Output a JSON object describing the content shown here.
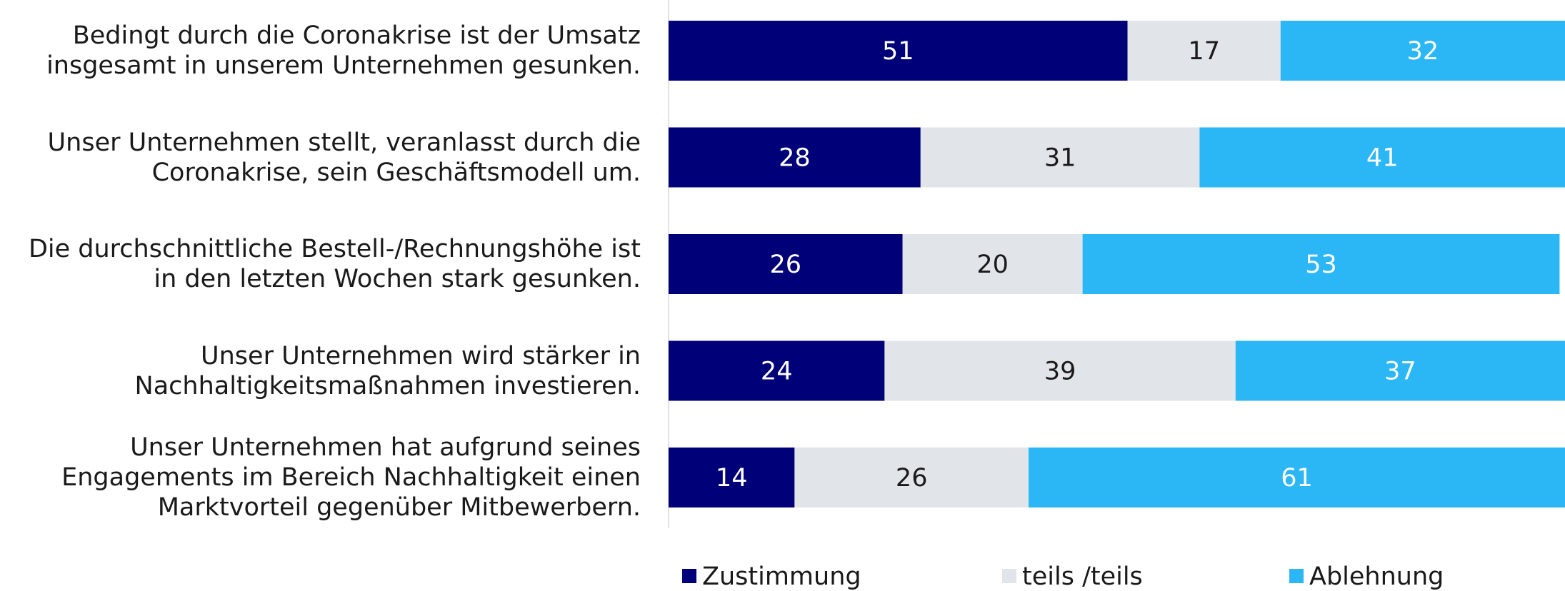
{
  "chart_data": {
    "type": "stacked_bar_horizontal",
    "categories": [
      "Bedingt durch die Coronakrise ist der Umsatz insgesamt in unserem Unternehmen gesunken.",
      "Unser Unternehmen stellt, veranlasst durch die Coronakrise, sein Geschäftsmodell um.",
      "Die durchschnittliche Bestell-/Rechnungshöhe ist in den letzten Wochen stark gesunken.",
      "Unser Unternehmen wird stärker in Nachhaltigkeitsmaßnahmen investieren.",
      "Unser Unternehmen hat aufgrund seines Engagements im Bereich Nachhaltigkeit einen Marktvorteil gegenüber Mitbewerbern."
    ],
    "series": [
      {
        "name": "Zustimmung",
        "color": "#000078",
        "values": [
          51,
          28,
          26,
          24,
          14
        ]
      },
      {
        "name": "teils /teils",
        "color": "#e1e4e8",
        "values": [
          17,
          31,
          20,
          39,
          26
        ]
      },
      {
        "name": "Ablehnung",
        "color": "#2bb7f5",
        "values": [
          32,
          41,
          53,
          37,
          61
        ]
      }
    ],
    "xlim": [
      0,
      100
    ],
    "legend": "bottom"
  }
}
